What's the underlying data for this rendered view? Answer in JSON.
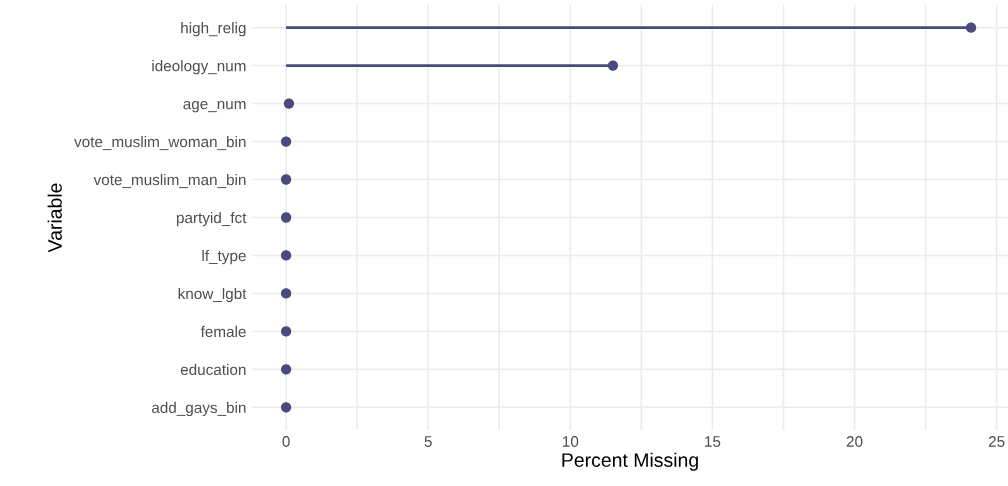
{
  "chart_data": {
    "type": "lollipop",
    "orientation": "horizontal",
    "xlabel": "Percent Missing",
    "ylabel": "Variable",
    "categories": [
      "high_relig",
      "ideology_num",
      "age_num",
      "vote_muslim_woman_bin",
      "vote_muslim_man_bin",
      "partyid_fct",
      "lf_type",
      "know_lgbt",
      "female",
      "education",
      "add_gays_bin"
    ],
    "values": [
      24.1,
      11.5,
      0.1,
      0,
      0,
      0,
      0,
      0,
      0,
      0,
      0
    ],
    "color": "#4b4a7c",
    "marker": "circle",
    "xlim": [
      -1.2,
      25.4
    ],
    "xticks": [
      0,
      5,
      10,
      15,
      20,
      25
    ],
    "grid": true
  }
}
